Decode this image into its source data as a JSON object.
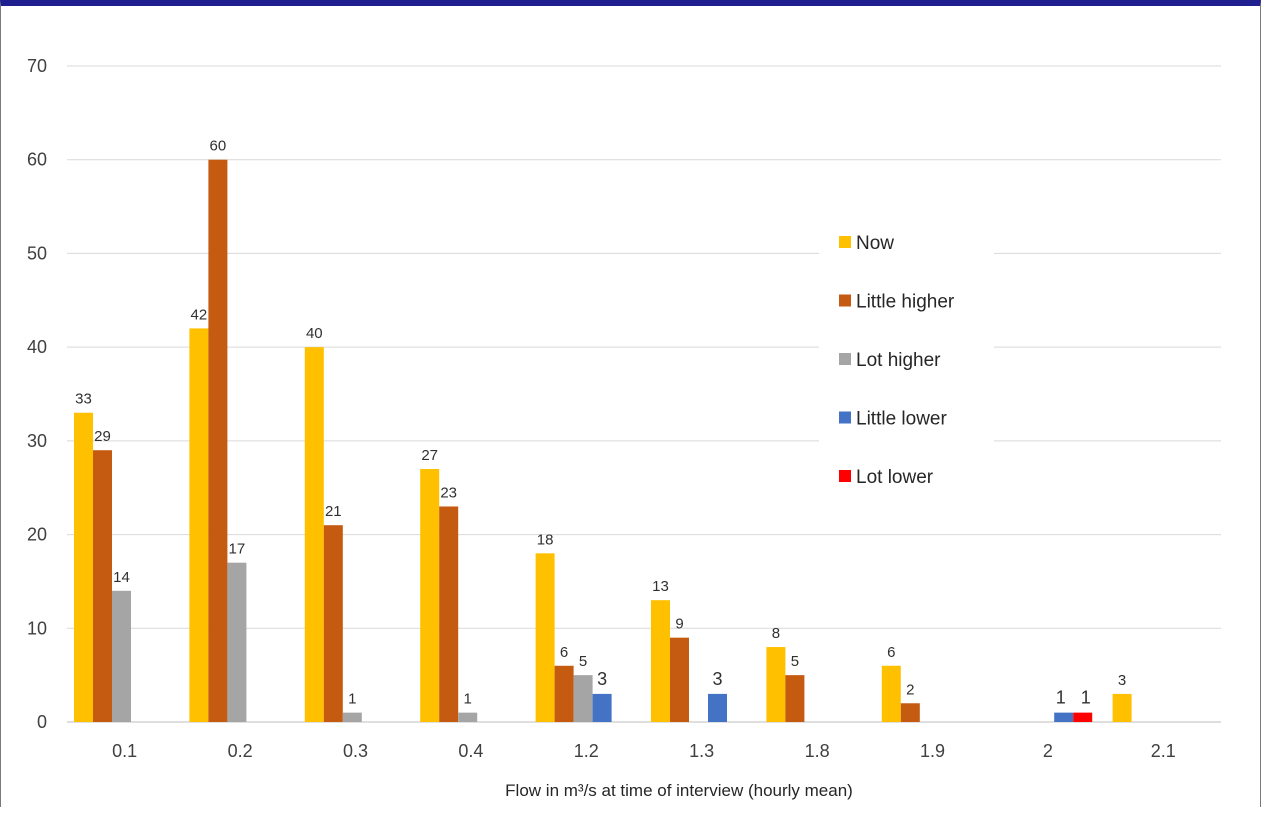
{
  "chart_data": {
    "type": "bar",
    "title": "",
    "xlabel": "Flow in m³/s at time of interview (hourly mean)",
    "ylabel": "",
    "ylim": [
      0,
      70
    ],
    "yticks": [
      "0",
      "10",
      "20",
      "30",
      "40",
      "50",
      "60",
      "70"
    ],
    "categories": [
      "0.1",
      "0.2",
      "0.3",
      "0.4",
      "1.2",
      "1.3",
      "1.8",
      "1.9",
      "2",
      "2.1"
    ],
    "grid": true,
    "legend_position": "right",
    "series": [
      {
        "name": "Now",
        "color": "#FFC000",
        "values": [
          33,
          42,
          40,
          27,
          18,
          13,
          8,
          6,
          null,
          3
        ],
        "labels": [
          "33",
          "42",
          "40",
          "27",
          "18",
          "13",
          "8",
          "6",
          "",
          "3"
        ]
      },
      {
        "name": "Little higher",
        "color": "#C55A11",
        "values": [
          29,
          60,
          21,
          23,
          6,
          9,
          5,
          2,
          null,
          null
        ],
        "labels": [
          "29",
          "60",
          "21",
          "23",
          "6",
          "9",
          "5",
          "2",
          "",
          ""
        ]
      },
      {
        "name": "Lot higher",
        "color": "#A5A5A5",
        "values": [
          14,
          17,
          1,
          1,
          5,
          null,
          null,
          null,
          null,
          null
        ],
        "labels": [
          "14",
          "17",
          "1",
          "1",
          "5",
          "",
          "",
          "",
          "",
          ""
        ]
      },
      {
        "name": "Little lower",
        "color": "#4472C4",
        "values": [
          null,
          null,
          null,
          null,
          3,
          3,
          null,
          null,
          1,
          null
        ],
        "labels": [
          "",
          "",
          "",
          "",
          "3",
          "3",
          "",
          "",
          "1",
          ""
        ]
      },
      {
        "name": "Lot lower",
        "color": "#FF0000",
        "values": [
          null,
          null,
          null,
          null,
          null,
          null,
          null,
          null,
          1,
          null
        ],
        "labels": [
          "",
          "",
          "",
          "",
          "",
          "",
          "",
          "",
          "1",
          ""
        ]
      }
    ]
  }
}
